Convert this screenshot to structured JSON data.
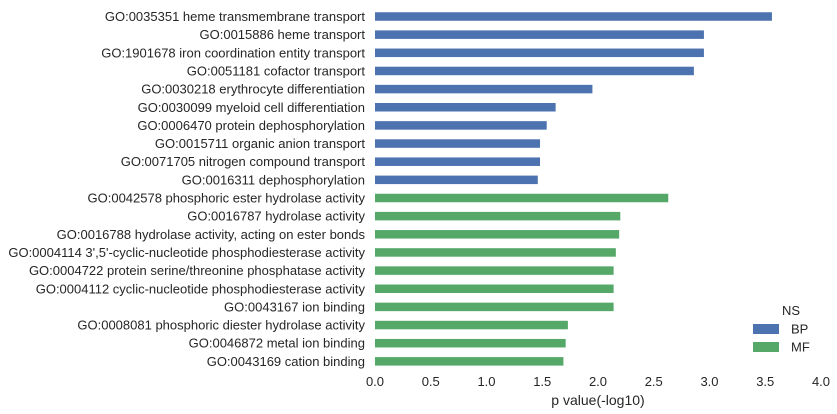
{
  "chart_data": {
    "type": "bar",
    "orientation": "horizontal",
    "xlabel": "p value(-log10)",
    "xlim": [
      0.0,
      4.0
    ],
    "xticks": [
      "0.0",
      "0.5",
      "1.0",
      "1.5",
      "2.0",
      "2.5",
      "3.0",
      "3.5",
      "4.0"
    ],
    "grid": false,
    "legend": {
      "title": "NS",
      "placement": "lower-right",
      "entries": [
        {
          "name": "BP",
          "color": "#4c72b0"
        },
        {
          "name": "MF",
          "color": "#55a868"
        }
      ]
    },
    "bars": [
      {
        "label": "GO:0035351 heme transmembrane transport",
        "value": 3.56,
        "series": "BP"
      },
      {
        "label": "GO:0015886 heme transport",
        "value": 2.95,
        "series": "BP"
      },
      {
        "label": "GO:1901678 iron coordination entity transport",
        "value": 2.95,
        "series": "BP"
      },
      {
        "label": "GO:0051181 cofactor transport",
        "value": 2.86,
        "series": "BP"
      },
      {
        "label": "GO:0030218 erythrocyte differentiation",
        "value": 1.95,
        "series": "BP"
      },
      {
        "label": "GO:0030099 myeloid cell differentiation",
        "value": 1.62,
        "series": "BP"
      },
      {
        "label": "GO:0006470 protein dephosphorylation",
        "value": 1.54,
        "series": "BP"
      },
      {
        "label": "GO:0015711 organic anion transport",
        "value": 1.48,
        "series": "BP"
      },
      {
        "label": "GO:0071705 nitrogen compound transport",
        "value": 1.48,
        "series": "BP"
      },
      {
        "label": "GO:0016311 dephosphorylation",
        "value": 1.46,
        "series": "BP"
      },
      {
        "label": "GO:0042578 phosphoric ester hydrolase activity",
        "value": 2.63,
        "series": "MF"
      },
      {
        "label": "GO:0016787 hydrolase activity",
        "value": 2.2,
        "series": "MF"
      },
      {
        "label": "GO:0016788 hydrolase activity, acting on ester bonds",
        "value": 2.19,
        "series": "MF"
      },
      {
        "label": "GO:0004114 3',5'-cyclic-nucleotide phosphodiesterase activity",
        "value": 2.16,
        "series": "MF"
      },
      {
        "label": "GO:0004722 protein serine/threonine phosphatase activity",
        "value": 2.14,
        "series": "MF"
      },
      {
        "label": "GO:0004112 cyclic-nucleotide phosphodiesterase activity",
        "value": 2.14,
        "series": "MF"
      },
      {
        "label": "GO:0043167 ion binding",
        "value": 2.14,
        "series": "MF"
      },
      {
        "label": "GO:0008081 phosphoric diester hydrolase activity",
        "value": 1.73,
        "series": "MF"
      },
      {
        "label": "GO:0046872 metal ion binding",
        "value": 1.71,
        "series": "MF"
      },
      {
        "label": "GO:0043169 cation binding",
        "value": 1.69,
        "series": "MF"
      }
    ]
  }
}
